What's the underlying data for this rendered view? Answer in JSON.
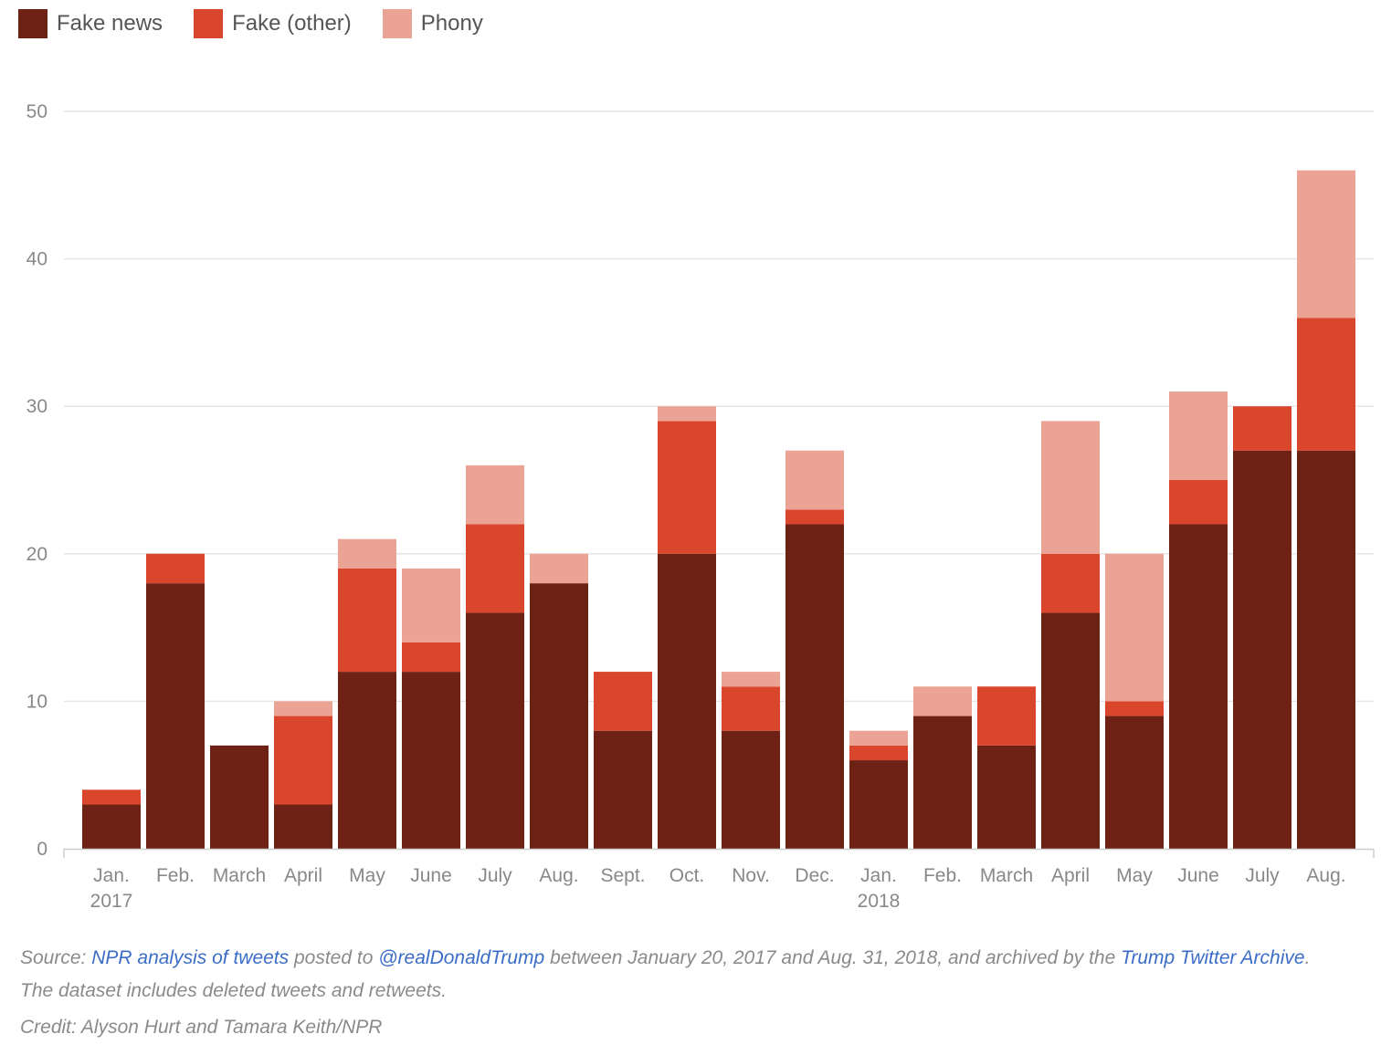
{
  "legend": [
    {
      "label": "Fake news",
      "color": "#6e2216"
    },
    {
      "label": "Fake (other)",
      "color": "#d9462c"
    },
    {
      "label": "Phony",
      "color": "#eba396"
    }
  ],
  "chart_data": {
    "type": "bar",
    "stacked": true,
    "categories": [
      "Jan.",
      "Feb.",
      "March",
      "April",
      "May",
      "June",
      "July",
      "Aug.",
      "Sept.",
      "Oct.",
      "Nov.",
      "Dec.",
      "Jan.",
      "Feb.",
      "March",
      "April",
      "May",
      "June",
      "July",
      "Aug."
    ],
    "category_sublabels": [
      "2017",
      "",
      "",
      "",
      "",
      "",
      "",
      "",
      "",
      "",
      "",
      "",
      "2018",
      "",
      "",
      "",
      "",
      "",
      "",
      ""
    ],
    "series": [
      {
        "name": "Fake news",
        "color": "#6e2216",
        "values": [
          3,
          18,
          7,
          3,
          12,
          12,
          16,
          18,
          8,
          20,
          8,
          22,
          6,
          9,
          7,
          16,
          9,
          22,
          27,
          27
        ]
      },
      {
        "name": "Fake (other)",
        "color": "#d9462c",
        "values": [
          1,
          2,
          0,
          6,
          7,
          2,
          6,
          0,
          4,
          9,
          3,
          1,
          1,
          0,
          4,
          4,
          1,
          3,
          3,
          9
        ]
      },
      {
        "name": "Phony",
        "color": "#eba396",
        "values": [
          0,
          0,
          0,
          1,
          2,
          5,
          4,
          2,
          0,
          1,
          1,
          4,
          1,
          2,
          0,
          9,
          10,
          6,
          0,
          10
        ]
      }
    ],
    "y_ticks": [
      0,
      10,
      20,
      30,
      40,
      50
    ],
    "ylim": [
      0,
      50
    ],
    "grid": true,
    "legend_position": "top-left"
  },
  "footer": {
    "source_label": "Source:",
    "source_link_1": "NPR analysis of tweets",
    "source_text_1": "posted to",
    "source_link_2": "@realDonaldTrump",
    "source_text_2": "between January 20, 2017 and Aug. 31, 2018, and archived by the",
    "source_link_3": "Trump Twitter Archive",
    "source_text_3": ".",
    "dataset_note": "The dataset includes deleted tweets and retweets.",
    "credit": "Credit: Alyson Hurt and Tamara Keith/NPR"
  }
}
